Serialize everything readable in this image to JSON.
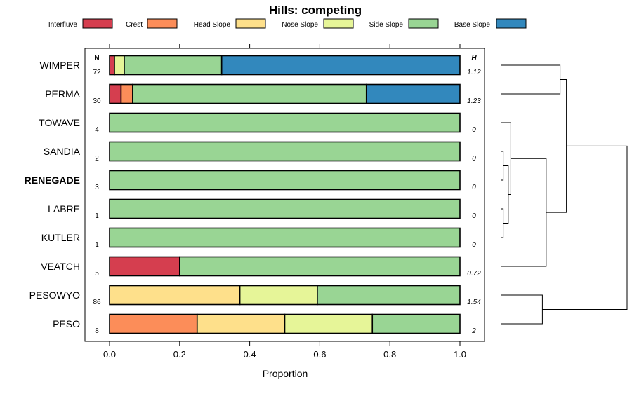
{
  "chart_data": {
    "type": "bar",
    "orientation": "horizontal",
    "stacked": true,
    "title": "Hills: competing",
    "xlabel": "Proportion",
    "ylabel": "",
    "xlim": [
      0,
      1
    ],
    "x_ticks": [
      "0.0",
      "0.2",
      "0.4",
      "0.6",
      "0.8",
      "1.0"
    ],
    "n_header": "N",
    "h_header": "H",
    "legend": [
      {
        "name": "Interfluve",
        "color": "#d53e4f"
      },
      {
        "name": "Crest",
        "color": "#fc8d59"
      },
      {
        "name": "Head Slope",
        "color": "#fee08b"
      },
      {
        "name": "Nose Slope",
        "color": "#e6f598"
      },
      {
        "name": "Side Slope",
        "color": "#99d594"
      },
      {
        "name": "Base Slope",
        "color": "#3288bd"
      }
    ],
    "categories": [
      "WIMPER",
      "PERMA",
      "TOWAVE",
      "SANDIA",
      "RENEGADE",
      "LABRE",
      "KUTLER",
      "VEATCH",
      "PESOWYO",
      "PESO"
    ],
    "highlight": "RENEGADE",
    "n": [
      "72",
      "30",
      "4",
      "2",
      "3",
      "1",
      "1",
      "5",
      "86",
      "8"
    ],
    "h": [
      "1.12",
      "1.23",
      "0",
      "0",
      "0",
      "0",
      "0",
      "0.72",
      "1.54",
      "2"
    ],
    "series": [
      {
        "name": "Interfluve",
        "values": [
          0.014,
          0.033,
          0,
          0,
          0,
          0,
          0,
          0.2,
          0,
          0
        ]
      },
      {
        "name": "Crest",
        "values": [
          0,
          0.033,
          0,
          0,
          0,
          0,
          0,
          0,
          0,
          0.25
        ]
      },
      {
        "name": "Head Slope",
        "values": [
          0,
          0,
          0,
          0,
          0,
          0,
          0,
          0,
          0.372,
          0.25
        ]
      },
      {
        "name": "Nose Slope",
        "values": [
          0.028,
          0,
          0,
          0,
          0,
          0,
          0,
          0,
          0.221,
          0.25
        ]
      },
      {
        "name": "Side Slope",
        "values": [
          0.278,
          0.667,
          1,
          1,
          1,
          1,
          1,
          0.8,
          0.407,
          0.25
        ]
      },
      {
        "name": "Base Slope",
        "values": [
          0.68,
          0.267,
          0,
          0,
          0,
          0,
          0,
          0,
          0,
          0
        ]
      }
    ],
    "dendrogram": {
      "merges": [
        {
          "a": "SANDIA",
          "b": "RENEGADE",
          "height": 0.02
        },
        {
          "a": "LABRE",
          "b": "KUTLER",
          "height": 0.02
        },
        {
          "a": "M1",
          "b": "M2",
          "height": 0.06
        },
        {
          "a": "TOWAVE",
          "b": "M3",
          "height": 0.08
        },
        {
          "a": "PESOWYO",
          "b": "PESO",
          "height": 0.33
        },
        {
          "a": "VEATCH",
          "b": "M4",
          "height": 0.36
        },
        {
          "a": "WIMPER",
          "b": "PERMA",
          "height": 0.47
        },
        {
          "a": "M6",
          "b": "M7",
          "height": 0.52
        },
        {
          "a": "M8",
          "b": "M5",
          "height": 1.0
        }
      ]
    }
  }
}
